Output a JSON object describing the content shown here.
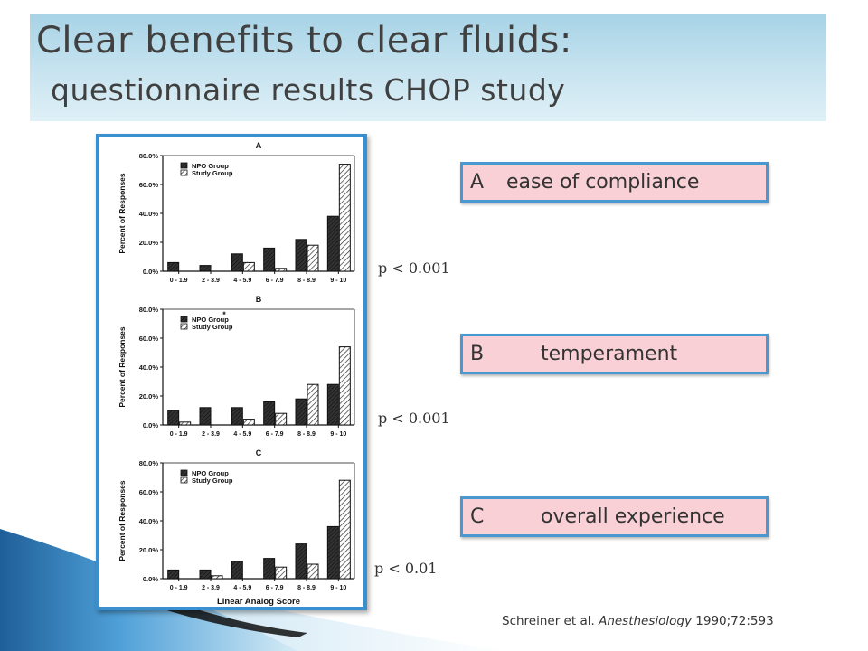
{
  "slide": {
    "title_line1": "Clear benefits to clear fluids:",
    "title_line2": "questionnaire results CHOP study",
    "citation_authors": "Schreiner et al.",
    "citation_journal": "Anesthesiology",
    "citation_details": "1990;72:593"
  },
  "labels": [
    {
      "letter": "A",
      "text": "ease of compliance"
    },
    {
      "letter": "B",
      "text": "temperament"
    },
    {
      "letter": "C",
      "text": "overall experience"
    }
  ],
  "p_values": [
    "p < 0.001",
    "p < 0.001",
    "p < 0.01"
  ],
  "colors": {
    "title_band": "#bfe0ee",
    "figure_frame": "#3a8fcf",
    "label_fill": "#f9d0d6",
    "label_border": "#4a98d2",
    "deco_dark": "#1f5f99",
    "deco_light": "#9fd0ea"
  },
  "chart_data": [
    {
      "type": "bar",
      "title": "A",
      "xlabel": "",
      "ylabel": "Percent of Responses",
      "categories": [
        "0 - 1.9",
        "2 - 3.9",
        "4 - 5.9",
        "6 - 7.9",
        "8 - 8.9",
        "9 - 10"
      ],
      "series": [
        {
          "name": "NPO Group",
          "values": [
            6,
            4,
            12,
            16,
            22,
            38
          ]
        },
        {
          "name": "Study Group",
          "values": [
            0,
            0,
            6,
            2,
            18,
            74
          ]
        }
      ],
      "ylim": [
        0,
        80
      ],
      "yticks": [
        "0.0%",
        "20.0%",
        "40.0%",
        "60.0%",
        "80.0%"
      ],
      "legend": "top-left",
      "extra_marks": []
    },
    {
      "type": "bar",
      "title": "B",
      "xlabel": "",
      "ylabel": "Percent of Responses",
      "categories": [
        "0 - 1.9",
        "2 - 3.9",
        "4 - 5.9",
        "6 - 7.9",
        "8 - 8.9",
        "9 - 10"
      ],
      "series": [
        {
          "name": "NPO Group",
          "values": [
            10,
            12,
            12,
            16,
            18,
            28
          ]
        },
        {
          "name": "Study Group",
          "values": [
            2,
            0,
            4,
            8,
            28,
            54
          ]
        }
      ],
      "ylim": [
        0,
        80
      ],
      "yticks": [
        "0.0%",
        "20.0%",
        "40.0%",
        "60.0%",
        "80.0%"
      ],
      "legend": "top-left",
      "extra_marks": [
        "*"
      ]
    },
    {
      "type": "bar",
      "title": "C",
      "xlabel": "Linear Analog Score",
      "ylabel": "Percent of Responses",
      "categories": [
        "0 - 1.9",
        "2 - 3.9",
        "4 - 5.9",
        "6 - 7.9",
        "8 - 8.9",
        "9 - 10"
      ],
      "series": [
        {
          "name": "NPO Group",
          "values": [
            6,
            6,
            12,
            14,
            24,
            36
          ]
        },
        {
          "name": "Study Group",
          "values": [
            0,
            2,
            0,
            8,
            10,
            68
          ]
        }
      ],
      "ylim": [
        0,
        80
      ],
      "yticks": [
        "0.0%",
        "20.0%",
        "40.0%",
        "60.0%",
        "80.0%"
      ],
      "legend": "top-left",
      "extra_marks": []
    }
  ]
}
